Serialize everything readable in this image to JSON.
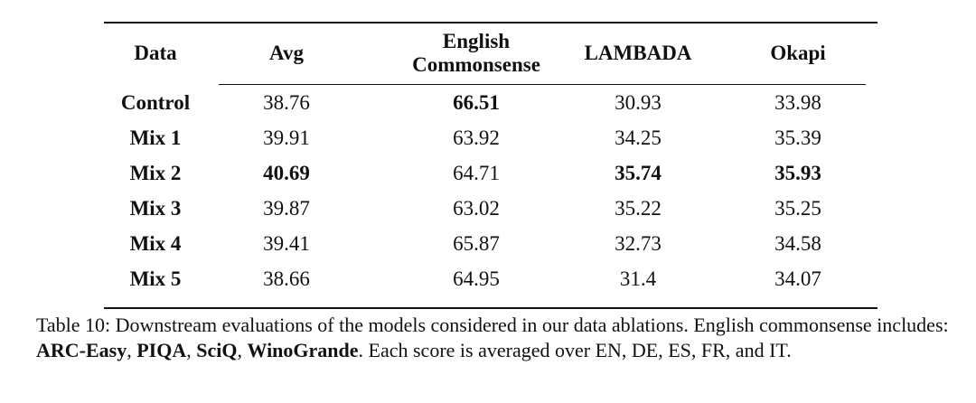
{
  "table": {
    "header": [
      "Data",
      "Avg",
      "English Commonsense",
      "LAMBADA",
      "Okapi"
    ],
    "rows": [
      [
        "Control",
        "38.76",
        "66.51",
        "30.93",
        "33.98"
      ],
      [
        "Mix 1",
        "39.91",
        "63.92",
        "34.25",
        "35.39"
      ],
      [
        "Mix 2",
        "40.69",
        "64.71",
        "35.74",
        "35.93"
      ],
      [
        "Mix 3",
        "39.87",
        "63.02",
        "35.22",
        "35.25"
      ],
      [
        "Mix 4",
        "39.41",
        "65.87",
        "32.73",
        "34.58"
      ],
      [
        "Mix 5",
        "38.66",
        "64.95",
        "31.4",
        "34.07"
      ]
    ],
    "bold": [
      [
        true,
        false,
        true,
        false,
        false
      ],
      [
        true,
        false,
        false,
        false,
        false
      ],
      [
        true,
        true,
        false,
        true,
        true
      ],
      [
        true,
        false,
        false,
        false,
        false
      ],
      [
        true,
        false,
        false,
        false,
        false
      ],
      [
        true,
        false,
        false,
        false,
        false
      ]
    ]
  },
  "caption": [
    {
      "text": "Table 10: Downstream evaluations of the models considered in our data ablations. English commonsense includes: ",
      "bold": false
    },
    {
      "text": "ARC-Easy",
      "bold": true
    },
    {
      "text": ", ",
      "bold": false
    },
    {
      "text": "PIQA",
      "bold": true
    },
    {
      "text": ", ",
      "bold": false
    },
    {
      "text": "SciQ",
      "bold": true
    },
    {
      "text": ", ",
      "bold": false
    },
    {
      "text": "WinoGrande",
      "bold": true
    },
    {
      "text": ". Each score is averaged over EN, DE, ES, FR, and IT.",
      "bold": false
    }
  ]
}
